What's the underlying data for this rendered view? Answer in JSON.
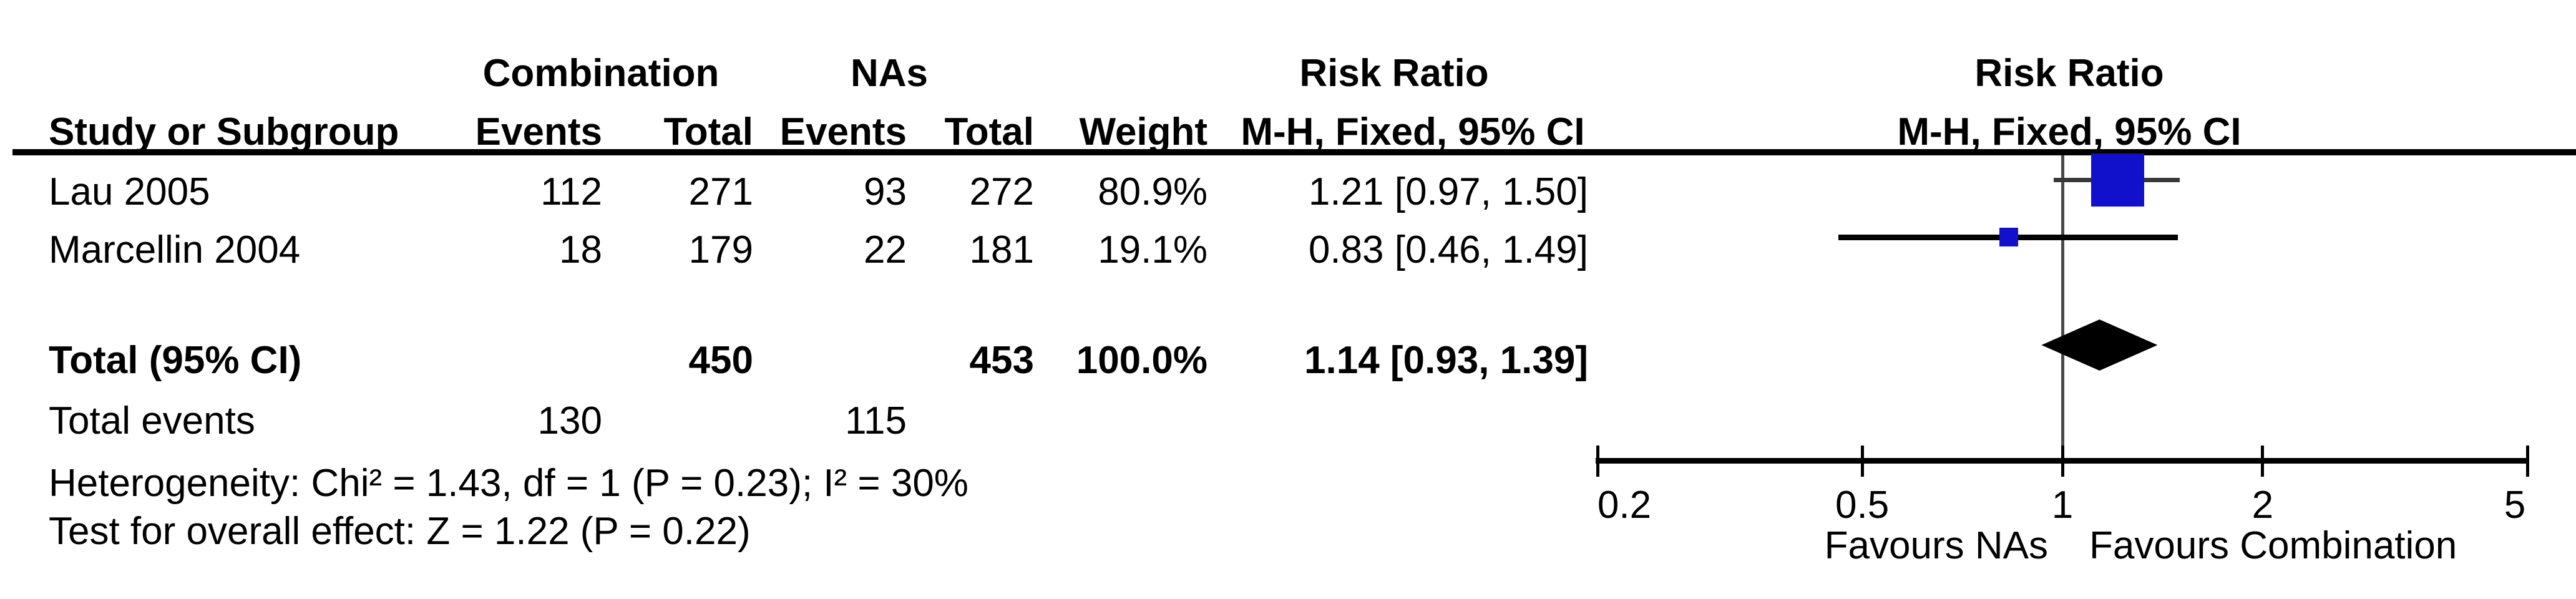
{
  "table": {
    "group_headers": {
      "combination": "Combination",
      "nas": "NAs",
      "risk_ratio_left": "Risk Ratio",
      "risk_ratio_right": "Risk Ratio"
    },
    "columns": {
      "study": "Study or Subgroup",
      "events_combination": "Events",
      "total_combination": "Total",
      "events_nas": "Events",
      "total_nas": "Total",
      "weight": "Weight",
      "mh_fixed_ci_left": "M-H, Fixed, 95% CI",
      "mh_fixed_ci_right": "M-H, Fixed, 95% CI"
    },
    "rows": [
      {
        "study": "Lau 2005",
        "events_combination": "112",
        "total_combination": "271",
        "events_nas": "93",
        "total_nas": "272",
        "weight": "80.9%",
        "ci_text": "1.21 [0.97, 1.50]"
      },
      {
        "study": "Marcellin 2004",
        "events_combination": "18",
        "total_combination": "179",
        "events_nas": "22",
        "total_nas": "181",
        "weight": "19.1%",
        "ci_text": "0.83 [0.46, 1.49]"
      }
    ],
    "total_row": {
      "label": "Total (95% CI)",
      "total_combination": "450",
      "total_nas": "453",
      "weight": "100.0%",
      "ci_text": "1.14 [0.93, 1.39]"
    },
    "total_events_row": {
      "label": "Total events",
      "combination": "130",
      "nas": "115"
    },
    "heterogeneity_line": "Heterogeneity: Chi² = 1.43, df = 1 (P = 0.23); I² = 30%",
    "overall_effect_line": "Test for overall effect: Z = 1.22 (P = 0.22)"
  },
  "chart_data": {
    "type": "scatter",
    "subtype": "forest-plot",
    "effect_measure": "Risk Ratio",
    "method": "M-H, Fixed, 95% CI",
    "x_scale": "log",
    "axis_range": [
      0.2,
      5
    ],
    "axis_ticks": [
      0.2,
      0.5,
      1,
      2,
      5
    ],
    "null_line": 1,
    "studies": [
      {
        "name": "Lau 2005",
        "rr": 1.21,
        "ci_low": 0.97,
        "ci_high": 1.5,
        "weight_pct": 80.9
      },
      {
        "name": "Marcellin 2004",
        "rr": 0.83,
        "ci_low": 0.46,
        "ci_high": 1.49,
        "weight_pct": 19.1
      }
    ],
    "total": {
      "label": "Total (95% CI)",
      "rr": 1.14,
      "ci_low": 0.93,
      "ci_high": 1.39,
      "weight_pct": 100.0
    },
    "favours_left": "Favours NAs",
    "favours_right": "Favours Combination",
    "marker_color": "#1111cb",
    "diamond_color": "#000000"
  }
}
